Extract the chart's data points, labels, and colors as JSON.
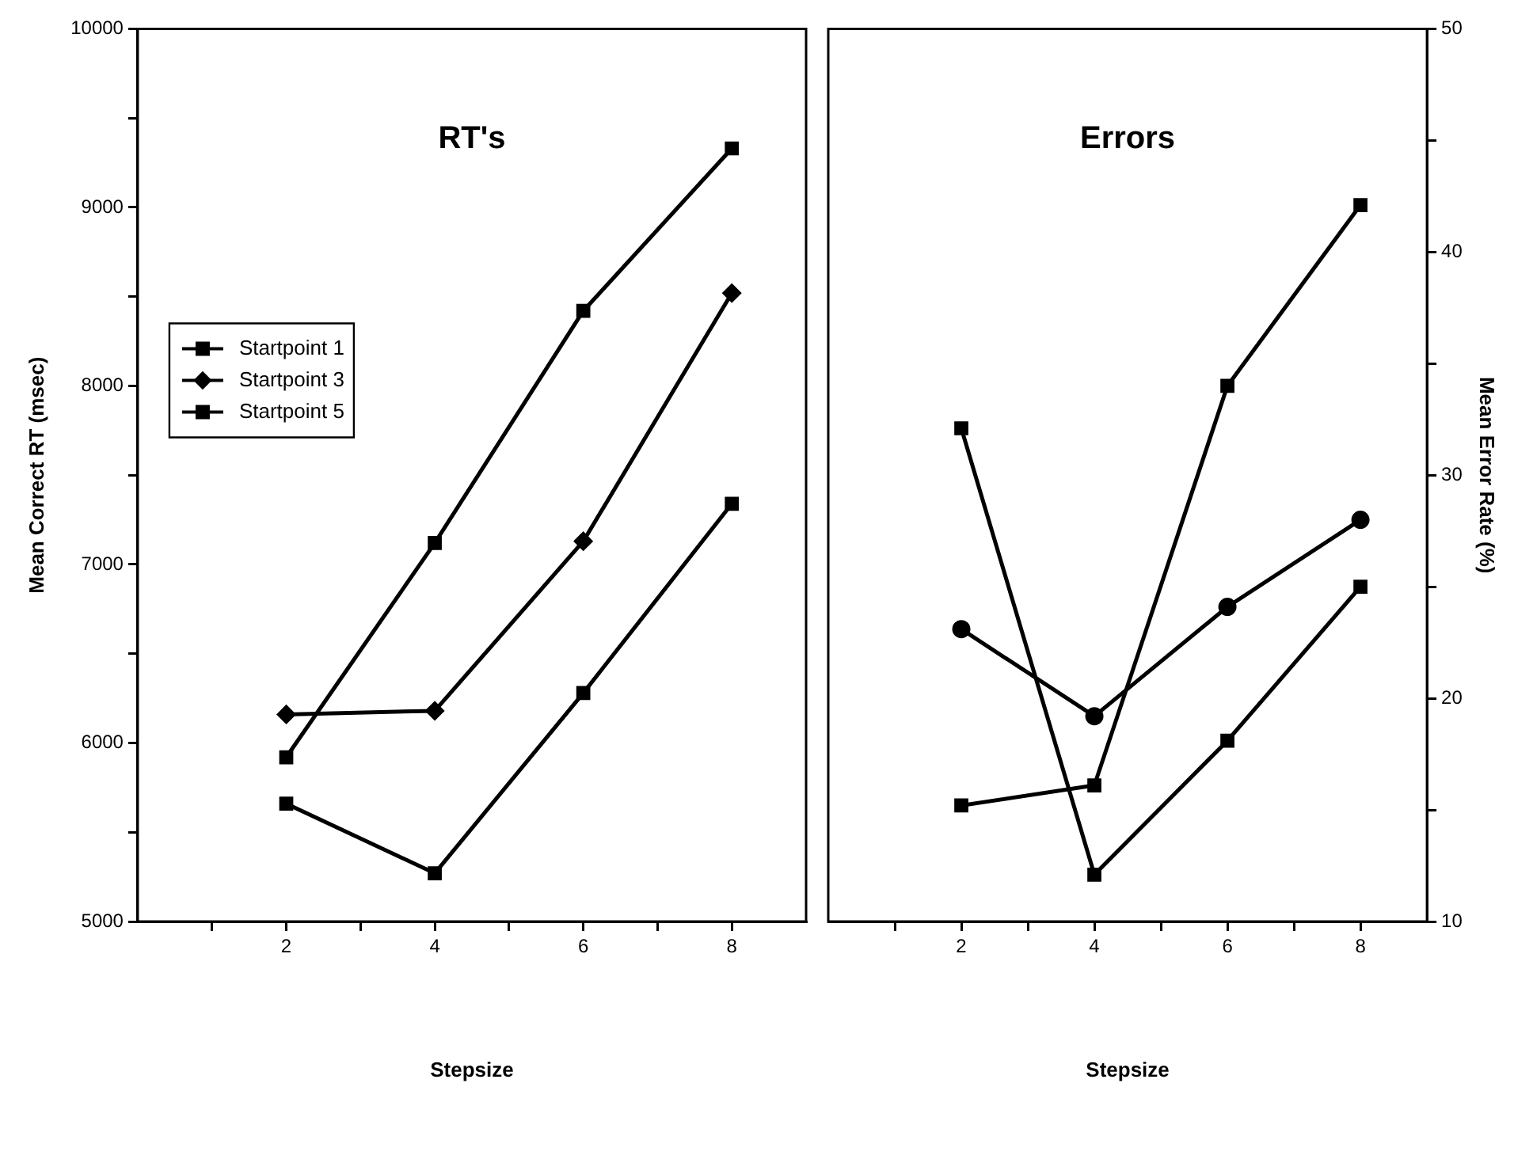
{
  "chart_data": [
    {
      "type": "line",
      "title": "RT's",
      "xlabel": "Stepsize",
      "ylabel": "Mean Correct RT (msec)",
      "x": [
        2,
        4,
        6,
        8
      ],
      "xlim": [
        0,
        9
      ],
      "xticks": [
        {
          "value": 1,
          "label": null
        },
        2,
        {
          "value": 3,
          "label": null
        },
        4,
        {
          "value": 5,
          "label": null
        },
        6,
        {
          "value": 7,
          "label": null
        },
        8
      ],
      "ylim": [
        5000,
        10000
      ],
      "yticks": [
        5000,
        {
          "value": 5500,
          "label": null
        },
        6000,
        {
          "value": 6500,
          "label": null
        },
        7000,
        {
          "value": 7500,
          "label": null
        },
        8000,
        {
          "value": 8500,
          "label": null
        },
        9000,
        {
          "value": 9500,
          "label": null
        },
        10000
      ],
      "legend": "left",
      "series": [
        {
          "name": "Startpoint 1",
          "color": "#000000",
          "marker": "square",
          "values": [
            5660,
            5270,
            6280,
            7340
          ]
        },
        {
          "name": "Startpoint 3",
          "color": "#000000",
          "marker": "diamond",
          "values": [
            6160,
            6180,
            7130,
            8520
          ]
        },
        {
          "name": "Startpoint 5",
          "color": "#000000",
          "marker": "square",
          "values": [
            5920,
            7120,
            8420,
            9330
          ]
        }
      ]
    },
    {
      "type": "line",
      "title": "Errors",
      "xlabel": "Stepsize",
      "y2label": "Mean Error Rate (%)",
      "x": [
        2,
        4,
        6,
        8
      ],
      "xlim": [
        0,
        9
      ],
      "xticks": [
        {
          "value": 1,
          "label": null
        },
        2,
        {
          "value": 3,
          "label": null
        },
        4,
        {
          "value": 5,
          "label": null
        },
        6,
        {
          "value": 7,
          "label": null
        },
        8
      ],
      "y2lim": [
        10,
        50
      ],
      "y2ticks": [
        10,
        {
          "value": 15,
          "label": null
        },
        20,
        {
          "value": 25,
          "label": null
        },
        30,
        {
          "value": 35,
          "label": null
        },
        40,
        {
          "value": 45,
          "label": null
        },
        50
      ],
      "series": [
        {
          "color": "#000000",
          "marker": "square",
          "axis": "y2",
          "values": [
            32.1,
            12.1,
            18.1,
            25.0
          ]
        },
        {
          "color": "#000000",
          "marker": "circle",
          "axis": "y2",
          "values": [
            23.1,
            19.2,
            24.1,
            28.0
          ]
        },
        {
          "color": "#000000",
          "marker": "square",
          "axis": "y2",
          "values": [
            15.2,
            16.1,
            34.0,
            42.1
          ]
        }
      ]
    }
  ]
}
